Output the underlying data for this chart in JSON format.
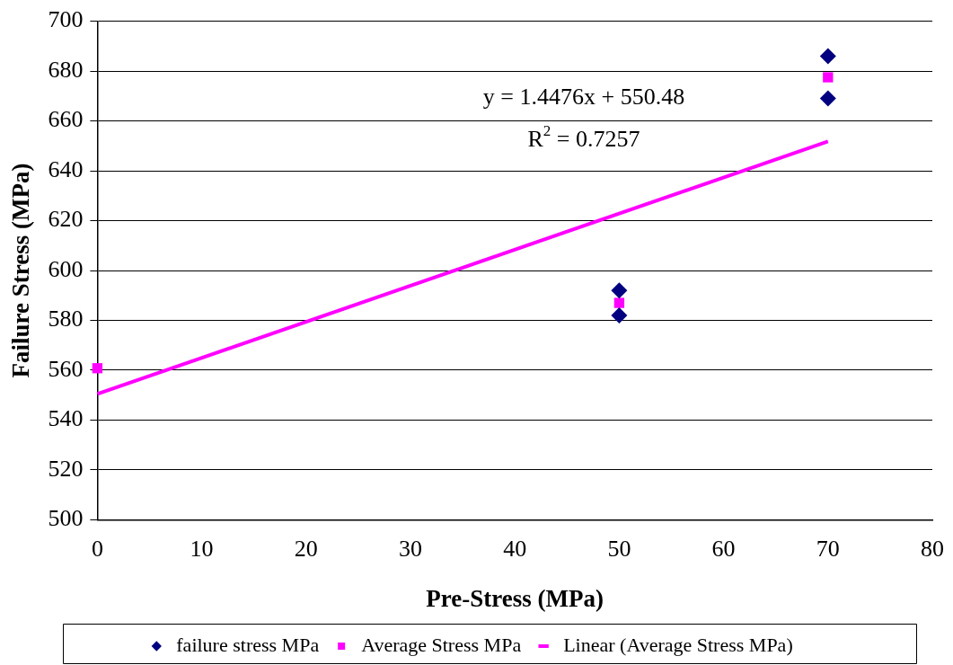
{
  "chart_data": {
    "type": "scatter",
    "xlabel": "Pre-Stress (MPa)",
    "ylabel": "Failure Stress (MPa)",
    "xlim": [
      0,
      80
    ],
    "xticks": [
      0,
      10,
      20,
      30,
      40,
      50,
      60,
      70,
      80
    ],
    "ylim": [
      500,
      700
    ],
    "yticks": [
      500,
      520,
      540,
      560,
      580,
      600,
      620,
      640,
      660,
      680,
      700
    ],
    "grid": "y",
    "legend": "bottom",
    "series": [
      {
        "name": "failure stress MPa",
        "color": "#000080",
        "marker": "diamond",
        "x": [
          50,
          50,
          70,
          70
        ],
        "values": [
          592,
          582,
          686,
          669
        ]
      },
      {
        "name": "Average Stress MPa",
        "color": "#ff00ff",
        "marker": "square",
        "x": [
          0,
          50,
          70
        ],
        "values": [
          560.8,
          587,
          677.5
        ]
      },
      {
        "name": "Linear (Average Stress MPa)",
        "type": "line",
        "color": "#ff00ff",
        "marker": "none",
        "x": [
          0,
          70
        ],
        "values": [
          550.5,
          651.8
        ]
      }
    ],
    "annotations": [
      "y = 1.4476x + 550.48",
      "R$^{2}$ = 0.7257"
    ]
  }
}
